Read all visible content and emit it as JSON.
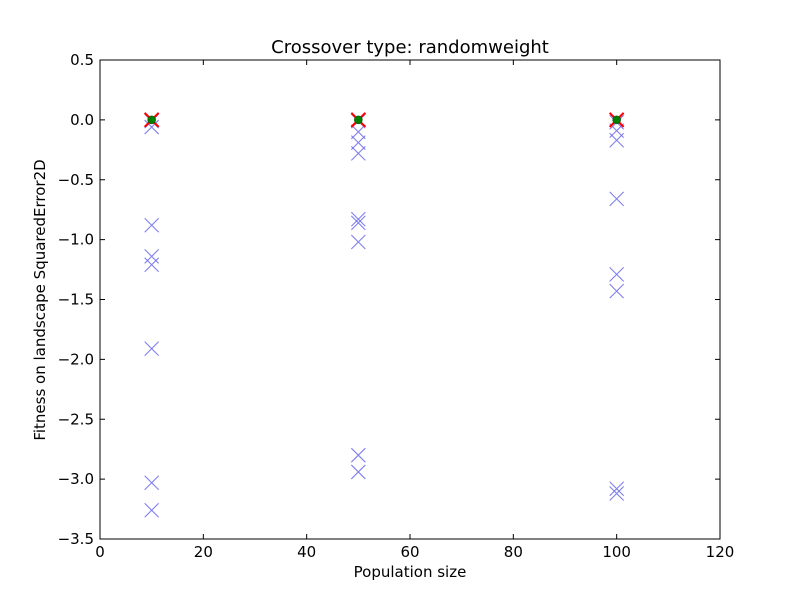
{
  "chart_data": {
    "type": "scatter",
    "title": "Crossover type: randomweight",
    "xlabel": "Population size",
    "ylabel": "Fitness on landscape SquaredError2D",
    "xlim": [
      0,
      120
    ],
    "ylim": [
      -3.5,
      0.5
    ],
    "xticks": [
      "0",
      "20",
      "40",
      "60",
      "80",
      "100",
      "120"
    ],
    "yticks": [
      "0.5",
      "0.0",
      "−0.5",
      "−1.0",
      "−1.5",
      "−2.0",
      "−2.5",
      "−3.0",
      "−3.5"
    ],
    "xtick_values": [
      0,
      20,
      40,
      60,
      80,
      100,
      120
    ],
    "ytick_values": [
      0.5,
      0.0,
      -0.5,
      -1.0,
      -1.5,
      -2.0,
      -2.5,
      -3.0,
      -3.5
    ],
    "grid": false,
    "series": [
      {
        "marker": "x",
        "color": "#6a6ae8",
        "points": [
          {
            "x": 10,
            "y": 0.0
          },
          {
            "x": 10,
            "y": -0.01
          },
          {
            "x": 10,
            "y": -0.06
          },
          {
            "x": 10,
            "y": -0.88
          },
          {
            "x": 10,
            "y": -1.14
          },
          {
            "x": 10,
            "y": -1.21
          },
          {
            "x": 10,
            "y": -1.91
          },
          {
            "x": 10,
            "y": -3.03
          },
          {
            "x": 10,
            "y": -3.26
          },
          {
            "x": 50,
            "y": 0.0
          },
          {
            "x": 50,
            "y": -0.01
          },
          {
            "x": 50,
            "y": -0.1
          },
          {
            "x": 50,
            "y": -0.19
          },
          {
            "x": 50,
            "y": -0.28
          },
          {
            "x": 50,
            "y": -0.83
          },
          {
            "x": 50,
            "y": -0.86
          },
          {
            "x": 50,
            "y": -1.02
          },
          {
            "x": 50,
            "y": -2.8
          },
          {
            "x": 50,
            "y": -2.94
          },
          {
            "x": 100,
            "y": 0.0
          },
          {
            "x": 100,
            "y": -0.02
          },
          {
            "x": 100,
            "y": -0.09
          },
          {
            "x": 100,
            "y": -0.17
          },
          {
            "x": 100,
            "y": -0.66
          },
          {
            "x": 100,
            "y": -1.29
          },
          {
            "x": 100,
            "y": -1.43
          },
          {
            "x": 100,
            "y": -3.08
          },
          {
            "x": 100,
            "y": -3.12
          }
        ]
      },
      {
        "marker": "x",
        "color": "#ff0000",
        "points": [
          {
            "x": 10,
            "y": 0.0
          },
          {
            "x": 50,
            "y": 0.0
          },
          {
            "x": 100,
            "y": 0.0
          }
        ]
      },
      {
        "marker": "o",
        "color": "#008000",
        "points": [
          {
            "x": 10,
            "y": 0.0
          },
          {
            "x": 50,
            "y": 0.0
          },
          {
            "x": 100,
            "y": 0.0
          }
        ]
      }
    ]
  }
}
